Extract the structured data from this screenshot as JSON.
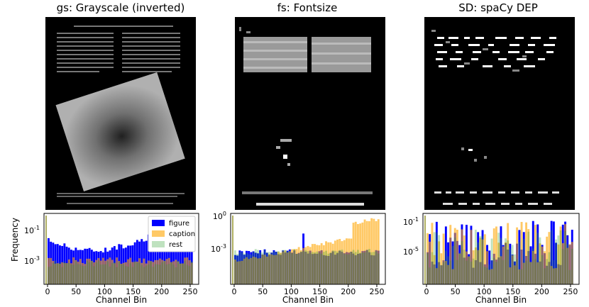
{
  "panels": [
    {
      "title": "gs: Grayscale (inverted)"
    },
    {
      "title": "fs: Fontsize"
    },
    {
      "title": "SD: spaCy DEP"
    }
  ],
  "legend": [
    "figure",
    "caption",
    "rest"
  ],
  "colors": {
    "figure": "#0000ff",
    "caption": "#ffa500",
    "rest": "#2ca02c"
  },
  "chart_data": [
    {
      "type": "bar",
      "ylabel": "Frequency",
      "xlabel": "Channel Bin",
      "yscale": "log",
      "xticks": [
        0,
        50,
        100,
        150,
        200,
        250
      ],
      "yticks": [
        "10^-1",
        "10^-3"
      ],
      "legend_position": "top-right",
      "series": [
        {
          "name": "figure",
          "values_desc": "approx 0.01 mid-range, rising to ~0.02 near 40-60"
        },
        {
          "name": "caption",
          "values_desc": "approx 0.0005-0.003"
        },
        {
          "name": "rest",
          "values_desc": "approx 0.0005-0.003"
        }
      ]
    },
    {
      "type": "bar",
      "xlabel": "Channel Bin",
      "yscale": "log",
      "xticks": [
        0,
        50,
        100,
        150,
        200,
        250
      ],
      "yticks": [
        "10^0",
        "10^-3"
      ],
      "series": [
        {
          "name": "figure"
        },
        {
          "name": "caption"
        },
        {
          "name": "rest"
        }
      ]
    },
    {
      "type": "bar",
      "xlabel": "Channel Bin",
      "yscale": "log",
      "xticks": [
        0,
        50,
        100,
        150,
        200,
        250
      ],
      "yticks": [
        "10^-1",
        "10^-5"
      ],
      "series": [
        {
          "name": "figure"
        },
        {
          "name": "caption"
        },
        {
          "name": "rest"
        }
      ]
    }
  ]
}
